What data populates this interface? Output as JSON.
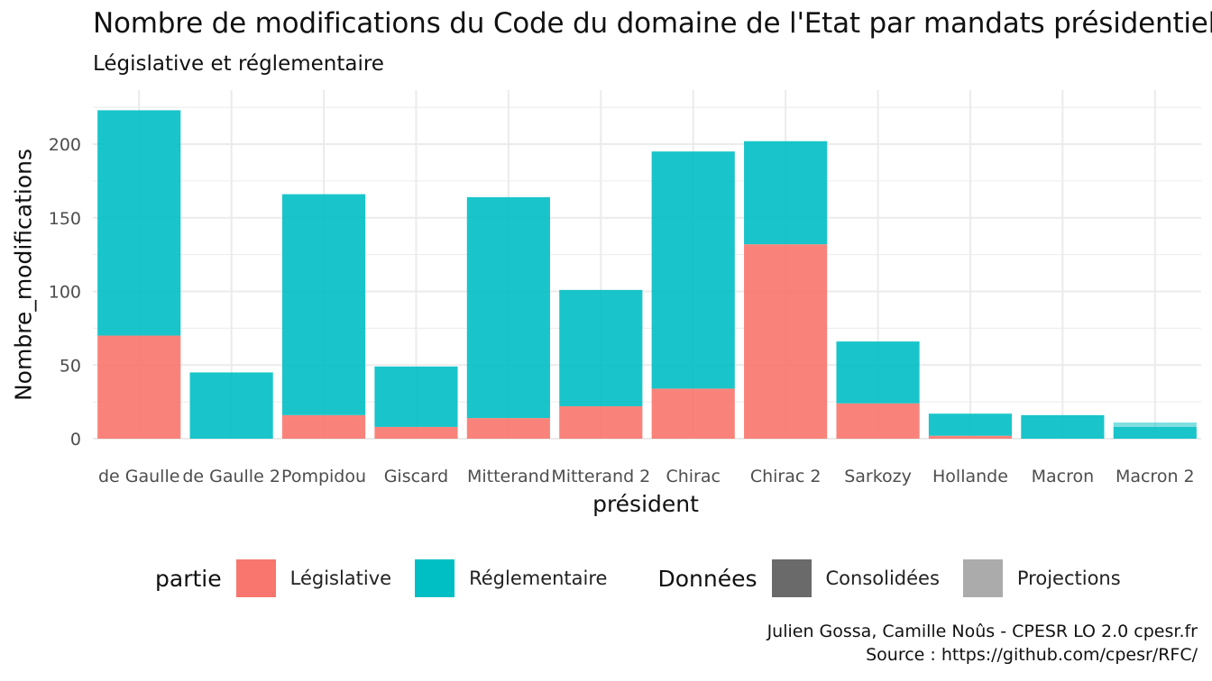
{
  "title": "Nombre de modifications du Code du domaine de l'Etat par mandats présidentiels",
  "subtitle": "Législative et réglementaire",
  "caption": {
    "line1": "Julien Gossa, Camille Noûs - CPESR LO 2.0 cpesr.fr",
    "line2": "Source : https://github.com/cpesr/RFC/"
  },
  "legend": {
    "partie_title": "partie",
    "partie_items": [
      "Législative",
      "Réglementaire"
    ],
    "donnees_title": "Données",
    "donnees_items": [
      "Consolidées",
      "Projections"
    ]
  },
  "colors": {
    "legislative": "#F8766D",
    "reglementaire": "#00BFC4",
    "consolidees": "#6a6a6a",
    "projections": "#ababab",
    "grid": "#ebebeb"
  },
  "chart_data": {
    "type": "bar",
    "stacked": true,
    "xlabel": "président",
    "ylabel": "Nombre_modifications",
    "ylim": [
      0,
      230
    ],
    "yticks": [
      0,
      50,
      100,
      150,
      200
    ],
    "categories": [
      "de Gaulle",
      "de Gaulle 2",
      "Pompidou",
      "Giscard",
      "Mitterand",
      "Mitterand 2",
      "Chirac",
      "Chirac 2",
      "Sarkozy",
      "Hollande",
      "Macron",
      "Macron 2"
    ],
    "series": [
      {
        "name": "Législative",
        "values": [
          70,
          0,
          16,
          8,
          14,
          22,
          34,
          132,
          24,
          2,
          0,
          0
        ]
      },
      {
        "name": "Réglementaire",
        "values": [
          153,
          45,
          150,
          41,
          150,
          79,
          161,
          70,
          42,
          15,
          16,
          8
        ]
      }
    ],
    "projections": {
      "name": "Projections",
      "category": "Macron 2",
      "values": [
        0,
        3
      ]
    },
    "grid": true,
    "legend_position": "bottom"
  }
}
